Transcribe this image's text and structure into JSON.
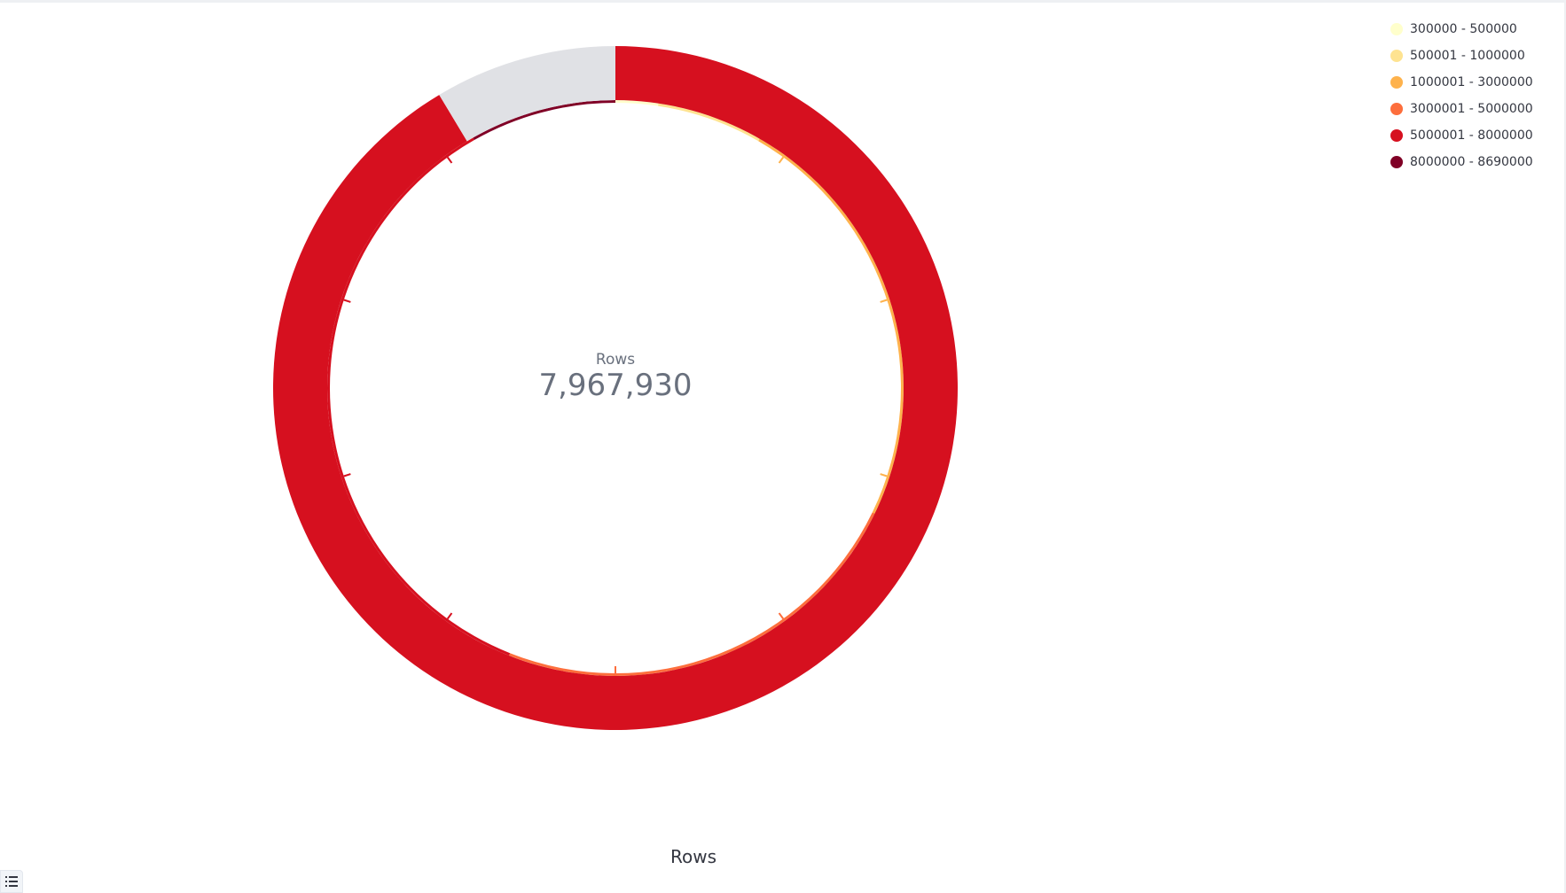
{
  "chart_data": {
    "type": "gauge",
    "metric_label": "Rows",
    "value": 7967930,
    "value_display": "7,967,930",
    "range": [
      300000,
      8690000
    ],
    "title": "Rows",
    "ranges": [
      {
        "label": "300000 - 500000",
        "from": 300000,
        "to": 500000,
        "color": "#ffffcc"
      },
      {
        "label": "500001 - 1000000",
        "from": 500001,
        "to": 1000000,
        "color": "#fee391"
      },
      {
        "label": "1000001 - 3000000",
        "from": 1000001,
        "to": 3000000,
        "color": "#feb24c"
      },
      {
        "label": "3000001 - 5000000",
        "from": 3000001,
        "to": 5000000,
        "color": "#fd6e3c"
      },
      {
        "label": "5000001 - 8000000",
        "from": 5000001,
        "to": 8000000,
        "color": "#d6101f"
      },
      {
        "label": "8000000 - 8690000",
        "from": 8000000,
        "to": 8690000,
        "color": "#800026"
      }
    ],
    "remainder_color": "#e0e1e5",
    "value_color": "#d6101f",
    "legend_position": "top-right"
  }
}
